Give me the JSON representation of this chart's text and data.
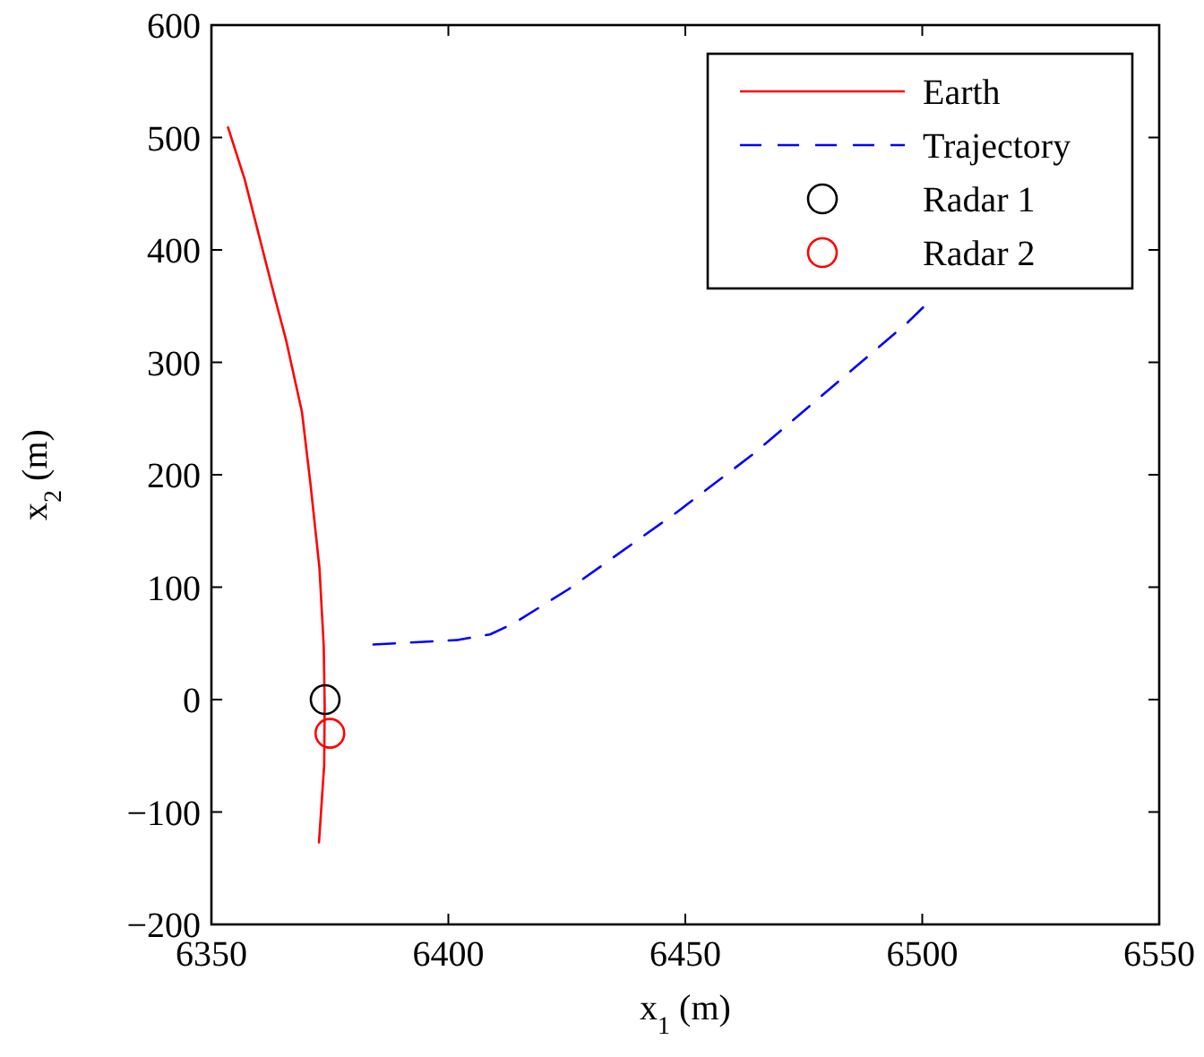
{
  "chart_data": {
    "type": "line",
    "xlabel": "x$_{1}$ (m)",
    "ylabel": "x$_{2}$ (m)",
    "xlim": [
      6350,
      6550
    ],
    "ylim": [
      -200,
      600
    ],
    "xticks": [
      6350,
      6400,
      6450,
      6500,
      6550
    ],
    "yticks": [
      {
        "value": -200,
        "label": "−200"
      },
      {
        "value": -100,
        "label": "−100"
      },
      0,
      100,
      200,
      300,
      400,
      500,
      600
    ],
    "grid": false,
    "legend": "top right",
    "series": [
      {
        "name": "Earth",
        "color": "#ff0000",
        "line_style": "solid",
        "x": [
          6353.5,
          6357,
          6363.3,
          6365.8,
          6369.1,
          6370.9,
          6372.8,
          6373.7,
          6373.9,
          6373.8,
          6372.7
        ],
        "values": [
          509,
          463,
          359,
          319,
          256,
          192,
          117,
          48,
          -5,
          -58,
          -127
        ]
      },
      {
        "name": "Trajectory",
        "color": "#0000ff",
        "line_style": "dashed",
        "x": [
          6384.2,
          6401.9,
          6408.8,
          6413.9,
          6425.3,
          6448,
          6464.5,
          6496.8,
          6500.2
        ],
        "values": [
          49,
          53,
          58,
          68,
          98,
          166,
          219,
          335,
          349
        ]
      },
      {
        "name": "Radar 1",
        "type": "scatter",
        "color": "#000000",
        "marker": "circle",
        "x": [
          6374
        ],
        "values": [
          0
        ]
      },
      {
        "name": "Radar 2",
        "type": "scatter",
        "color": "#ff0000",
        "marker": "circle",
        "x": [
          6375
        ],
        "values": [
          -30
        ]
      }
    ]
  }
}
